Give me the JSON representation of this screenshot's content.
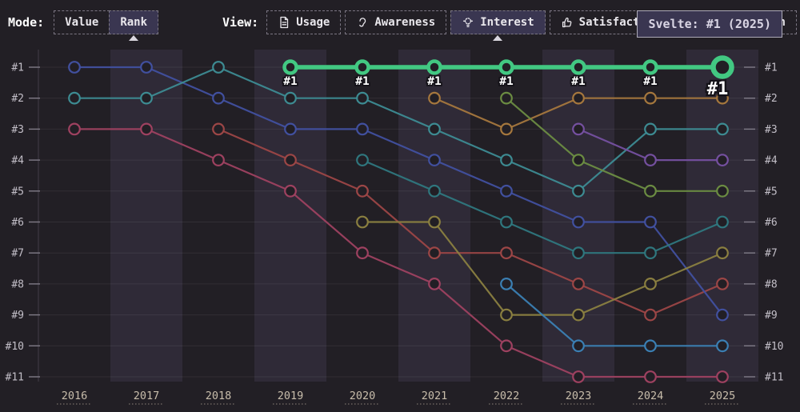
{
  "header": {
    "mode_label": "Mode:",
    "mode_options": [
      {
        "label": "Value",
        "selected": false
      },
      {
        "label": "Rank",
        "selected": true
      }
    ],
    "view_label": "View:",
    "view_options": [
      {
        "label": "Usage",
        "icon": "file-icon",
        "selected": false
      },
      {
        "label": "Awareness",
        "icon": "ear-icon",
        "selected": false
      },
      {
        "label": "Interest",
        "icon": "bulb-icon",
        "selected": true
      },
      {
        "label": "Satisfaction",
        "icon": "thumbs-up-icon",
        "selected": false
      },
      {
        "label": "Appreciation",
        "icon": "heart-icon",
        "selected": false
      }
    ],
    "tooltip_text": "Svelte: #1 (2025)"
  },
  "colors": {
    "background": "#221f25",
    "band_light": "rgba(125,112,170,0.14)",
    "grid": "rgba(255,255,255,0.07)",
    "axis_line": "#413e47",
    "tick": "#807c88",
    "rank_label": "#c2bec7",
    "year_label": "#c8bdab",
    "highlight_green": "#42c882",
    "point_label_fill": "#ffffff",
    "point_label_stroke": "#141218"
  },
  "chart_data": {
    "type": "line",
    "subtype": "bump-rank-chart",
    "title": "",
    "xlabel": "",
    "ylabel": "",
    "grid": true,
    "x": [
      "2016",
      "2017",
      "2018",
      "2019",
      "2020",
      "2021",
      "2022",
      "2023",
      "2024",
      "2025"
    ],
    "y_axis": {
      "left_labels": [
        "#1",
        "#2",
        "#3",
        "#4",
        "#5",
        "#6",
        "#7",
        "#8",
        "#9",
        "#10",
        "#11"
      ],
      "right_labels": [
        "#1",
        "#2",
        "#3",
        "#4",
        "#5",
        "#6",
        "#7",
        "#8",
        "#9",
        "#10",
        "#11"
      ],
      "range": [
        1,
        11
      ],
      "inverted": true
    },
    "highlight_point_label": "#1",
    "series": [
      {
        "name": "series-crimson",
        "color": "#9e4160",
        "highlight": false,
        "ranks": [
          3,
          3,
          4,
          5,
          7,
          8,
          10,
          11,
          11,
          11
        ]
      },
      {
        "name": "series-red",
        "color": "#9c4646",
        "highlight": false,
        "ranks": [
          null,
          null,
          3,
          4,
          5,
          7,
          7,
          8,
          9,
          8
        ]
      },
      {
        "name": "series-blue",
        "color": "#41509f",
        "highlight": false,
        "ranks": [
          1,
          1,
          2,
          3,
          3,
          4,
          5,
          6,
          6,
          9
        ]
      },
      {
        "name": "series-teal",
        "color": "#3d8b92",
        "highlight": false,
        "ranks": [
          2,
          2,
          1,
          2,
          2,
          3,
          4,
          5,
          3,
          3
        ]
      },
      {
        "name": "series-teal-dark",
        "color": "#2f777e",
        "highlight": false,
        "ranks": [
          null,
          null,
          null,
          null,
          4,
          5,
          6,
          7,
          7,
          6
        ]
      },
      {
        "name": "series-olive",
        "color": "#8a7f40",
        "highlight": false,
        "ranks": [
          null,
          null,
          null,
          null,
          6,
          6,
          9,
          9,
          8,
          7
        ]
      },
      {
        "name": "series-orange",
        "color": "#a5773d",
        "highlight": false,
        "ranks": [
          null,
          null,
          null,
          null,
          null,
          2,
          3,
          2,
          2,
          2
        ]
      },
      {
        "name": "series-olive-green",
        "color": "#6b8c42",
        "highlight": false,
        "ranks": [
          null,
          null,
          null,
          null,
          null,
          null,
          2,
          4,
          5,
          5
        ]
      },
      {
        "name": "series-light-blue",
        "color": "#3b7fb3",
        "highlight": false,
        "ranks": [
          null,
          null,
          null,
          null,
          null,
          null,
          8,
          10,
          10,
          10
        ]
      },
      {
        "name": "series-purple",
        "color": "#7550a0",
        "highlight": false,
        "ranks": [
          null,
          null,
          null,
          null,
          null,
          null,
          null,
          3,
          4,
          4
        ]
      },
      {
        "name": "Svelte",
        "color": "#42c882",
        "highlight": true,
        "ranks": [
          null,
          null,
          null,
          1,
          1,
          1,
          1,
          1,
          1,
          1
        ]
      }
    ]
  }
}
